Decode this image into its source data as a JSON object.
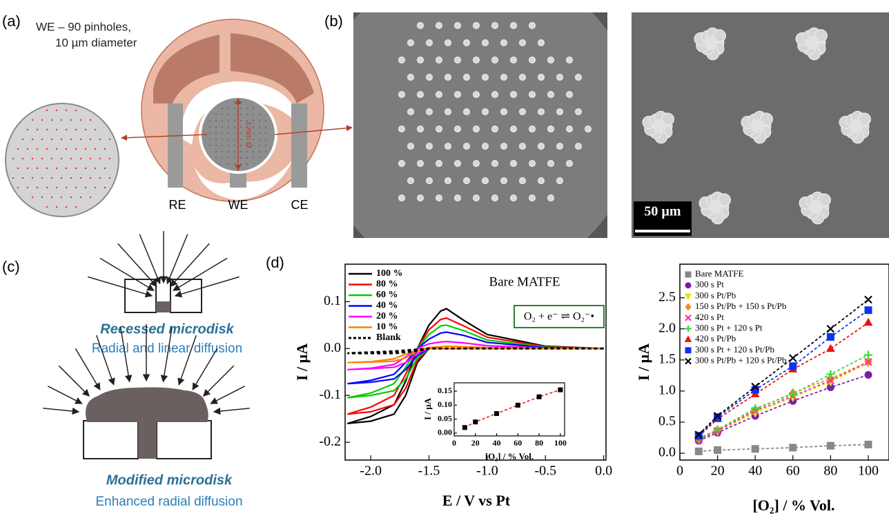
{
  "panel_labels": {
    "a": "(a)",
    "b": "(b)",
    "c": "(c)",
    "d": "(d)"
  },
  "panel_a": {
    "zoom_label": [
      "WE – 90 pinholes,",
      "10 µm diameter"
    ],
    "diameter": "1 mm Ø",
    "electrodes": [
      "RE",
      "WE",
      "CE"
    ]
  },
  "panel_b": {
    "scale_bar": "50 µm"
  },
  "panel_c": {
    "recessed": {
      "title": "Recessed microdisk",
      "caption": "Radial and linear diffusion"
    },
    "modified": {
      "title": "Modified microdisk",
      "caption": "Enhanced radial diffusion"
    }
  },
  "chart_data": [
    {
      "type": "line",
      "annotation": "Bare MATFE",
      "equation": "O₂ + e⁻ ⇌ O₂⁻•",
      "x_label": "E / V vs Pt",
      "y_label": "I / µA",
      "x": [
        0,
        -0.5,
        -1.0,
        -1.5,
        -1.6,
        -1.7,
        -1.8,
        -2.0,
        -2.2,
        -2.0,
        -1.8,
        -1.7,
        -1.6,
        -1.5,
        -1.4,
        -1.35,
        -1.2,
        -1.0,
        -0.5,
        0
      ],
      "series": [
        {
          "name": "100 %",
          "color": "#000000",
          "values": [
            0,
            0,
            0,
            0,
            -0.03,
            -0.1,
            -0.14,
            -0.155,
            -0.16,
            -0.145,
            -0.12,
            -0.07,
            0.0,
            0.05,
            0.08,
            0.085,
            0.06,
            0.03,
            0.005,
            0
          ]
        },
        {
          "name": "80 %",
          "color": "#ff0000",
          "values": [
            0,
            0,
            0,
            0,
            -0.025,
            -0.085,
            -0.12,
            -0.135,
            -0.14,
            -0.125,
            -0.1,
            -0.055,
            0.0,
            0.04,
            0.062,
            0.065,
            0.048,
            0.024,
            0.004,
            0
          ]
        },
        {
          "name": "60 %",
          "color": "#00cc00",
          "values": [
            0,
            0,
            0,
            0,
            -0.02,
            -0.065,
            -0.09,
            -0.1,
            -0.105,
            -0.095,
            -0.075,
            -0.04,
            0.0,
            0.03,
            0.048,
            0.05,
            0.038,
            0.018,
            0.003,
            0
          ]
        },
        {
          "name": "40 %",
          "color": "#0000ff",
          "values": [
            0,
            0,
            0,
            0,
            -0.015,
            -0.045,
            -0.065,
            -0.072,
            -0.075,
            -0.068,
            -0.055,
            -0.03,
            0.0,
            0.02,
            0.033,
            0.035,
            0.028,
            0.013,
            0.002,
            0
          ]
        },
        {
          "name": "20 %",
          "color": "#ff00ff",
          "values": [
            0,
            0,
            0,
            0,
            -0.01,
            -0.03,
            -0.04,
            -0.043,
            -0.045,
            -0.042,
            -0.034,
            -0.018,
            0.0,
            0.01,
            0.014,
            0.015,
            0.012,
            0.006,
            0.001,
            0
          ]
        },
        {
          "name": "10 %",
          "color": "#ff8000",
          "values": [
            0,
            0,
            0,
            0,
            -0.005,
            -0.02,
            -0.027,
            -0.029,
            -0.03,
            -0.028,
            -0.022,
            -0.012,
            -0.003,
            0.002,
            0.004,
            0.005,
            0.004,
            0.002,
            0,
            0
          ]
        },
        {
          "name": "Blank",
          "color": "#000000",
          "line_style": "dashed",
          "values": [
            0,
            0,
            0,
            0,
            -0.005,
            -0.008,
            -0.01,
            -0.01,
            -0.01,
            -0.008,
            -0.006,
            -0.004,
            -0.002,
            0,
            0,
            0,
            0,
            0,
            0,
            0
          ]
        }
      ],
      "xlim": [
        -2.22,
        0.02
      ],
      "ylim": [
        -0.238,
        0.18
      ],
      "xticks": [
        {
          "value": -2,
          "label": "-2.0"
        },
        -1.5,
        {
          "value": -1,
          "label": "-1.0"
        },
        -0.5,
        {
          "value": 0,
          "label": "0.0"
        }
      ],
      "yticks": [
        0.1,
        {
          "value": 0,
          "label": "0.0"
        },
        -0.1,
        -0.2
      ]
    },
    {
      "type": "scatter",
      "x_label": "[O₂] / % Vol.",
      "y_label": "I / µA",
      "line_style": "dashed",
      "x": [
        10,
        20,
        40,
        60,
        80,
        100
      ],
      "series": [
        {
          "color": "#000000",
          "line_color": "#e8312f",
          "marker": "square",
          "values": [
            0.02,
            0.04,
            0.07,
            0.1,
            0.13,
            0.155
          ]
        }
      ],
      "xlim": [
        0,
        104
      ],
      "ylim": [
        -0.01,
        0.18
      ],
      "xticks": [
        0,
        20,
        40,
        60,
        80,
        100
      ],
      "yticks": [
        {
          "value": 0,
          "label": "0.00"
        },
        0.05,
        {
          "value": 0.1,
          "label": "0.10"
        },
        0.15
      ]
    },
    {
      "type": "scatter",
      "x_label": "[O₂] / % Vol.",
      "y_label": "I / µA",
      "line_style": "dashed",
      "x": [
        10,
        20,
        40,
        60,
        80,
        100
      ],
      "series": [
        {
          "name": "Bare MATFE",
          "color": "#888888",
          "marker": "square",
          "values": [
            0.03,
            0.05,
            0.07,
            0.09,
            0.12,
            0.14
          ]
        },
        {
          "name": "300 s Pt",
          "color": "#7b1fa2",
          "marker": "circle",
          "values": [
            0.2,
            0.33,
            0.6,
            0.84,
            1.06,
            1.26
          ]
        },
        {
          "name": "300 s Pt/Pb",
          "color": "#e6e600",
          "marker": "triangle-down",
          "values": [
            0.22,
            0.35,
            0.65,
            0.9,
            1.15,
            1.45
          ]
        },
        {
          "name": "150 s Pt/Pb + 150 s Pt/Pb",
          "color": "#f28c28",
          "marker": "diamond",
          "values": [
            0.23,
            0.37,
            0.7,
            0.97,
            1.2,
            1.47
          ]
        },
        {
          "name": "420 s Pt",
          "color": "#ff3399",
          "marker": "x",
          "values": [
            0.22,
            0.36,
            0.68,
            0.92,
            1.17,
            1.47
          ]
        },
        {
          "name": "300 s Pt + 120 s Pt",
          "color": "#33dd33",
          "marker": "plus",
          "values": [
            0.24,
            0.38,
            0.72,
            0.95,
            1.27,
            1.58
          ]
        },
        {
          "name": "420 s Pt/Pb",
          "color": "#ee1111",
          "marker": "triangle-up",
          "values": [
            0.27,
            0.55,
            0.95,
            1.35,
            1.68,
            2.1
          ]
        },
        {
          "name": "300 s Pt + 120 s Pt/Pb",
          "color": "#1133ee",
          "marker": "square",
          "values": [
            0.28,
            0.58,
            1.02,
            1.4,
            1.87,
            2.3
          ]
        },
        {
          "name": "300 s Pt/Pb + 120 s Pt/Pb",
          "color": "#000000",
          "marker": "x",
          "values": [
            0.3,
            0.6,
            1.07,
            1.53,
            2.0,
            2.47
          ]
        }
      ],
      "xlim": [
        0,
        111
      ],
      "ylim": [
        -0.11,
        3.04
      ],
      "xticks": [
        0,
        20,
        40,
        60,
        80,
        100
      ],
      "yticks": [
        {
          "value": 0,
          "label": "0.0"
        },
        0.5,
        {
          "value": 1,
          "label": "1.0"
        },
        1.5,
        {
          "value": 2,
          "label": "2.0"
        },
        2.5
      ]
    }
  ]
}
